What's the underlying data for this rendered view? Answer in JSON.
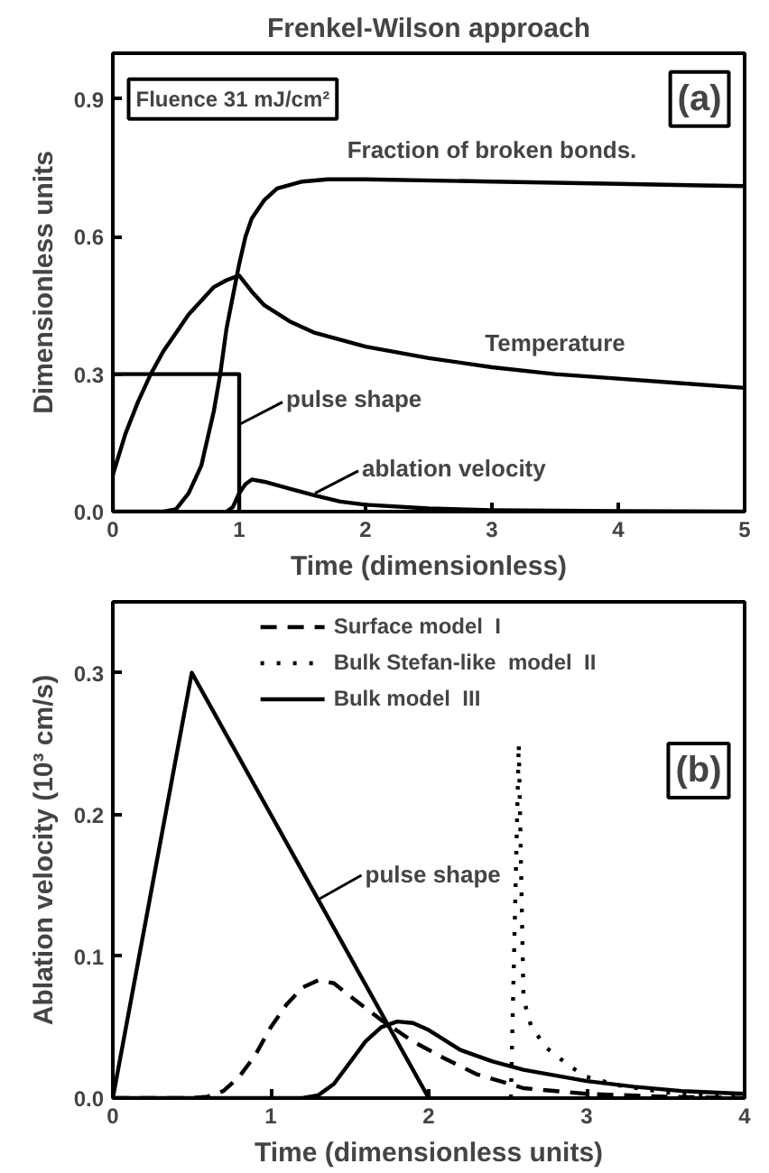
{
  "chart_data": [
    {
      "type": "line",
      "title": "Frenkel-Wilson approach",
      "xlabel": "Time (dimensionless)",
      "ylabel": "Dimensionless units",
      "xlim": [
        0,
        5
      ],
      "xticks": [
        0,
        1,
        2,
        3,
        4,
        5
      ],
      "ylim": [
        0,
        1.0
      ],
      "yticks": [
        {
          "value": 0,
          "label": "0.0"
        },
        0.3,
        0.6,
        0.9
      ],
      "grid": false,
      "legend": false,
      "marker": "none",
      "series": [
        {
          "name": "Fraction of broken bonds.",
          "color": "#000000",
          "x": [
            0,
            0.4,
            0.5,
            0.6,
            0.7,
            0.8,
            0.85,
            0.9,
            0.95,
            1.0,
            1.05,
            1.1,
            1.2,
            1.3,
            1.5,
            1.7,
            2,
            3,
            4,
            5
          ],
          "values": [
            0,
            0,
            0.005,
            0.04,
            0.1,
            0.22,
            0.3,
            0.4,
            0.47,
            0.54,
            0.6,
            0.64,
            0.68,
            0.705,
            0.72,
            0.725,
            0.725,
            0.72,
            0.715,
            0.71
          ]
        },
        {
          "name": "Temperature",
          "color": "#000000",
          "x": [
            0,
            0.1,
            0.2,
            0.3,
            0.4,
            0.5,
            0.6,
            0.7,
            0.8,
            0.9,
            1.0,
            1.1,
            1.2,
            1.4,
            1.6,
            2,
            2.5,
            3,
            3.5,
            4,
            4.5,
            5
          ],
          "values": [
            0.08,
            0.17,
            0.24,
            0.3,
            0.35,
            0.39,
            0.43,
            0.46,
            0.49,
            0.505,
            0.515,
            0.48,
            0.45,
            0.415,
            0.39,
            0.36,
            0.335,
            0.315,
            0.3,
            0.29,
            0.28,
            0.27
          ]
        },
        {
          "color": "#000000",
          "x": [
            0,
            0,
            1,
            1
          ],
          "values": [
            0,
            0.3,
            0.3,
            0
          ]
        },
        {
          "color": "#000000",
          "x": [
            0.9,
            0.95,
            1.0,
            1.05,
            1.1,
            1.2,
            1.4,
            1.6,
            1.8,
            2,
            2.5,
            3,
            4,
            5
          ],
          "values": [
            0,
            0.01,
            0.04,
            0.06,
            0.07,
            0.065,
            0.05,
            0.035,
            0.022,
            0.015,
            0.007,
            0.003,
            0.001,
            0
          ]
        }
      ],
      "annotations": [
        "Fluence 31 mJ/cm²",
        "(a)",
        {
          "text": "pulse shape",
          "x": 1.0,
          "y": 0.19
        },
        {
          "text": "ablation velocity",
          "x": 1.6,
          "y": 0.04
        }
      ]
    },
    {
      "type": "line",
      "xlabel": "Time (dimensionless units)",
      "ylabel": "Ablation velocity (10³ cm/s)",
      "xlim": [
        0,
        4
      ],
      "xticks": [
        0,
        1,
        2,
        3,
        4
      ],
      "ylim": [
        0,
        0.35
      ],
      "yticks": [
        {
          "value": 0,
          "label": "0.0"
        },
        0.1,
        0.2,
        0.3
      ],
      "grid": false,
      "legend": "top",
      "marker": "none",
      "series": [
        {
          "name": "Surface model  I",
          "color": "#000000",
          "line_style": "dashed",
          "x": [
            0,
            0.5,
            0.6,
            0.7,
            0.8,
            0.9,
            1.0,
            1.1,
            1.2,
            1.3,
            1.4,
            1.5,
            1.7,
            1.9,
            2.1,
            2.3,
            2.6,
            3,
            3.5,
            4
          ],
          "values": [
            0,
            0,
            0.001,
            0.005,
            0.015,
            0.03,
            0.05,
            0.066,
            0.078,
            0.083,
            0.081,
            0.072,
            0.055,
            0.04,
            0.028,
            0.017,
            0.007,
            0.003,
            0.001,
            0
          ]
        },
        {
          "name": "Bulk Stefan-like  model  II",
          "color": "#000000",
          "line_style": "dotted",
          "x": [
            2.52,
            2.54,
            2.56,
            2.57,
            2.6,
            2.65,
            2.75,
            2.9,
            3.0,
            3.2,
            3.5,
            4
          ],
          "values": [
            0,
            0.1,
            0.2,
            0.25,
            0.07,
            0.05,
            0.035,
            0.022,
            0.015,
            0.009,
            0.004,
            0.001
          ]
        },
        {
          "name": "Bulk model  III",
          "color": "#000000",
          "line_style": "solid",
          "x": [
            0,
            1.2,
            1.3,
            1.4,
            1.5,
            1.6,
            1.7,
            1.8,
            1.9,
            2.0,
            2.2,
            2.4,
            2.6,
            2.8,
            3.0,
            3.3,
            3.6,
            4
          ],
          "values": [
            0,
            0,
            0.002,
            0.01,
            0.025,
            0.04,
            0.05,
            0.054,
            0.053,
            0.048,
            0.034,
            0.026,
            0.02,
            0.016,
            0.012,
            0.008,
            0.005,
            0.003
          ]
        },
        {
          "color": "#000000",
          "line_style": "solid",
          "x": [
            0,
            0.5,
            2
          ],
          "values": [
            0,
            0.3,
            0
          ]
        }
      ],
      "annotations": [
        "(b)",
        {
          "text": "pulse shape",
          "x": 1.3,
          "y": 0.14
        }
      ]
    }
  ]
}
